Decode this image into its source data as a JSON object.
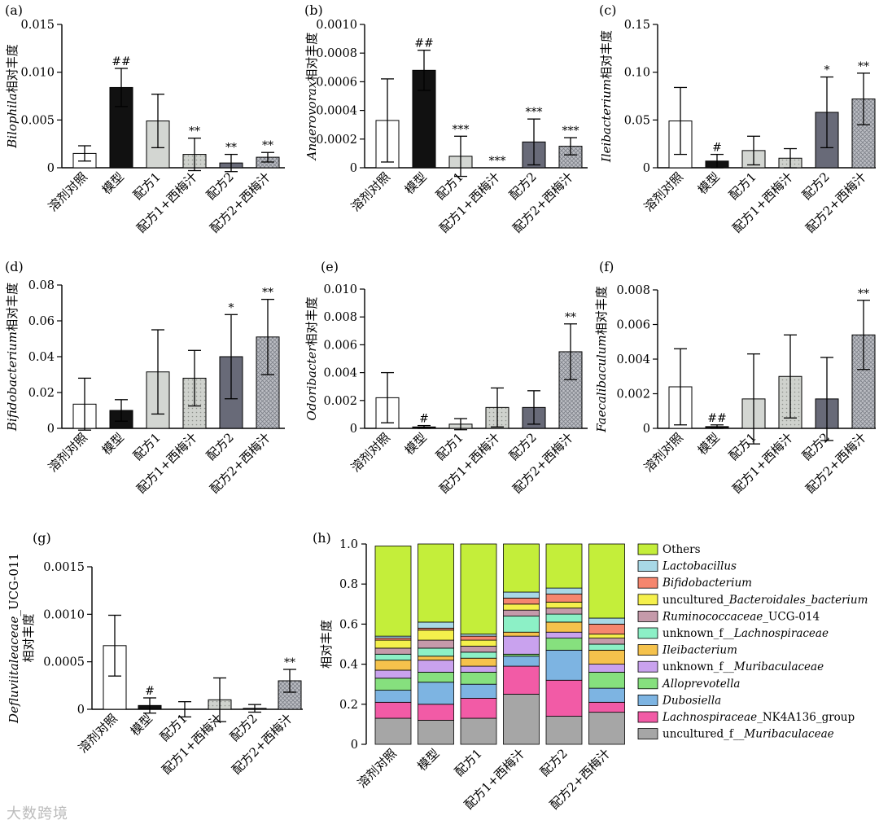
{
  "chart_data": [
    {
      "type": "bar",
      "panel": "(a)",
      "title": "",
      "ylabel": "Bilophila相对丰度",
      "ylabel_italic": "Bilophila",
      "ylabel_rest": "相对丰度",
      "categories": [
        "溶剂对照",
        "模型",
        "配方1",
        "配方1+西梅汁",
        "配方2",
        "配方2+西梅汁"
      ],
      "values": [
        0.0015,
        0.0084,
        0.0049,
        0.0014,
        0.0005,
        0.0011
      ],
      "errors": [
        0.0008,
        0.002,
        0.0028,
        0.0017,
        0.0009,
        0.0005
      ],
      "marks": [
        "",
        "##",
        "",
        "**",
        "**",
        "**"
      ],
      "ylim": [
        0,
        0.015
      ],
      "yticks": [
        0,
        0.005,
        0.01,
        0.015
      ],
      "ytick_labels": [
        "0",
        "0.005",
        "0.010",
        "0.015"
      ]
    },
    {
      "type": "bar",
      "panel": "(b)",
      "title": "",
      "ylabel": "Anaerovorax相对丰度",
      "ylabel_italic": "Anaerovorax",
      "ylabel_rest": "相对丰度",
      "categories": [
        "溶剂对照",
        "模型",
        "配方1",
        "配方1+西梅汁",
        "配方2",
        "配方2+西梅汁"
      ],
      "values": [
        0.00033,
        0.00068,
        8e-05,
        0.0,
        0.00018,
        0.00015
      ],
      "errors": [
        0.00029,
        0.00014,
        0.00014,
        0.0,
        0.00016,
        6e-05
      ],
      "marks": [
        "",
        "##",
        "***",
        "***",
        "***",
        "***"
      ],
      "ylim": [
        0,
        0.001
      ],
      "yticks": [
        0,
        0.0002,
        0.0004,
        0.0006,
        0.0008,
        0.001
      ],
      "ytick_labels": [
        "0",
        "0.0002",
        "0.0004",
        "0.0006",
        "0.0008",
        "0.0010"
      ]
    },
    {
      "type": "bar",
      "panel": "(c)",
      "title": "",
      "ylabel": "Ileibacterium相对丰度",
      "ylabel_italic": "Ileibacterium",
      "ylabel_rest": "相对丰度",
      "categories": [
        "溶剂对照",
        "模型",
        "配方1",
        "配方1+西梅汁",
        "配方2",
        "配方2+西梅汁"
      ],
      "values": [
        0.049,
        0.007,
        0.018,
        0.01,
        0.058,
        0.072
      ],
      "errors": [
        0.035,
        0.007,
        0.015,
        0.01,
        0.037,
        0.027
      ],
      "marks": [
        "",
        "#",
        "",
        "",
        "*",
        "**"
      ],
      "ylim": [
        0,
        0.15
      ],
      "yticks": [
        0,
        0.05,
        0.1,
        0.15
      ],
      "ytick_labels": [
        "0",
        "0.05",
        "0.10",
        "0.15"
      ]
    },
    {
      "type": "bar",
      "panel": "(d)",
      "title": "",
      "ylabel": "Bifidobacterium相对丰度",
      "ylabel_italic": "Bifidobacterium",
      "ylabel_rest": "相对丰度",
      "categories": [
        "溶剂对照",
        "模型",
        "配方1",
        "配方1+西梅汁",
        "配方2",
        "配方2+西梅汁"
      ],
      "values": [
        0.0135,
        0.01,
        0.0315,
        0.028,
        0.04,
        0.051
      ],
      "errors": [
        0.0145,
        0.006,
        0.0235,
        0.0155,
        0.0235,
        0.021
      ],
      "marks": [
        "",
        "",
        "",
        "",
        "*",
        "**"
      ],
      "ylim": [
        0,
        0.08
      ],
      "yticks": [
        0,
        0.02,
        0.04,
        0.06,
        0.08
      ],
      "ytick_labels": [
        "0",
        "0.02",
        "0.04",
        "0.06",
        "0.08"
      ]
    },
    {
      "type": "bar",
      "panel": "(e)",
      "title": "",
      "ylabel": "Odoribacter相对丰度",
      "ylabel_italic": "Odoribacter",
      "ylabel_rest": "相对丰度",
      "categories": [
        "溶剂对照",
        "模型",
        "配方1",
        "配方1+西梅汁",
        "配方2",
        "配方2+西梅汁"
      ],
      "values": [
        0.0022,
        0.0001,
        0.0003,
        0.0015,
        0.0015,
        0.0055
      ],
      "errors": [
        0.0018,
        0.0001,
        0.0004,
        0.0014,
        0.0012,
        0.002
      ],
      "marks": [
        "",
        "#",
        "",
        "",
        "",
        "**"
      ],
      "ylim": [
        0,
        0.01
      ],
      "yticks": [
        0,
        0.002,
        0.004,
        0.006,
        0.008,
        0.01
      ],
      "ytick_labels": [
        "0",
        "0.002",
        "0.004",
        "0.006",
        "0.008",
        "0.010"
      ]
    },
    {
      "type": "bar",
      "panel": "(f)",
      "title": "",
      "ylabel": "Faecalibaculum相对丰度",
      "ylabel_italic": "Faecalibaculum",
      "ylabel_rest": "相对丰度",
      "categories": [
        "溶剂对照",
        "模型",
        "配方1",
        "配方1+西梅汁",
        "配方2",
        "配方2+西梅汁"
      ],
      "values": [
        0.0024,
        0.0001,
        0.0017,
        0.003,
        0.0017,
        0.0054
      ],
      "errors": [
        0.0022,
        0.0001,
        0.0026,
        0.0024,
        0.0024,
        0.002
      ],
      "marks": [
        "",
        "##",
        "",
        "",
        "",
        "**"
      ],
      "ylim": [
        0,
        0.008
      ],
      "yticks": [
        0,
        0.002,
        0.004,
        0.006,
        0.008
      ],
      "ytick_labels": [
        "0",
        "0.002",
        "0.004",
        "0.006",
        "0.008"
      ]
    },
    {
      "type": "bar",
      "panel": "(g)",
      "title": "",
      "ylabel": "Defluviitaleaceae_UCG-011 相对丰度",
      "ylabel_italic": "Defluviitaleaceae",
      "ylabel_suffix": "_UCG-011",
      "ylabel_rest": "相对丰度",
      "categories": [
        "溶剂对照",
        "模型",
        "配方1",
        "配方1+西梅汁",
        "配方2",
        "配方2+西梅汁"
      ],
      "values": [
        0.00067,
        4e-05,
        0.0,
        0.0001,
        1e-05,
        0.0003
      ],
      "errors": [
        0.00032,
        8e-05,
        8e-05,
        0.00023,
        4e-05,
        0.00012
      ],
      "marks": [
        "",
        "#",
        "",
        "",
        "",
        "**"
      ],
      "ylim": [
        0,
        0.0015
      ],
      "yticks": [
        0,
        0.0005,
        0.001,
        0.0015
      ],
      "ytick_labels": [
        "0",
        "0.0005",
        "0.0010",
        "0.0015"
      ]
    },
    {
      "type": "stacked_bar",
      "panel": "(h)",
      "title": "",
      "ylabel": "相对丰度",
      "categories": [
        "溶剂对照",
        "模型",
        "配方1",
        "配方1+西梅汁",
        "配方2",
        "配方2+西梅汁"
      ],
      "ylim": [
        0,
        1.0
      ],
      "yticks": [
        0,
        0.2,
        0.4,
        0.6,
        0.8,
        1.0
      ],
      "ytick_labels": [
        "0",
        "0.2",
        "0.4",
        "0.6",
        "0.8",
        "1.0"
      ],
      "series": [
        {
          "name": "uncultured_f__Muribaculaceae",
          "label_parts": [
            [
              "uncultured_f__",
              false
            ],
            [
              "Muribaculaceae",
              true
            ]
          ],
          "color": "#a6a6a6",
          "values": [
            0.13,
            0.12,
            0.13,
            0.25,
            0.14,
            0.16
          ]
        },
        {
          "name": "Lachnospiraceae_NK4A136_group",
          "label_parts": [
            [
              "Lachnospiraceae",
              true
            ],
            [
              "_NK4A136_group",
              false
            ]
          ],
          "color": "#f25ba6",
          "values": [
            0.08,
            0.08,
            0.1,
            0.14,
            0.18,
            0.05
          ]
        },
        {
          "name": "Dubosiella",
          "label_parts": [
            [
              "Dubosiella",
              true
            ]
          ],
          "color": "#7db4e2",
          "values": [
            0.06,
            0.11,
            0.07,
            0.05,
            0.15,
            0.07
          ]
        },
        {
          "name": "Alloprevotella",
          "label_parts": [
            [
              "Alloprevotella",
              true
            ]
          ],
          "color": "#86e07e",
          "values": [
            0.06,
            0.05,
            0.06,
            0.01,
            0.06,
            0.08
          ]
        },
        {
          "name": "unknown_f__Muribaculaceae",
          "label_parts": [
            [
              "unknown_f__",
              false
            ],
            [
              "Muribaculaceae",
              true
            ]
          ],
          "color": "#c9a2ee",
          "values": [
            0.04,
            0.06,
            0.03,
            0.09,
            0.03,
            0.04
          ]
        },
        {
          "name": "Ileibacterium",
          "label_parts": [
            [
              "Ileibacterium",
              true
            ]
          ],
          "color": "#f5c24c",
          "values": [
            0.05,
            0.02,
            0.04,
            0.02,
            0.05,
            0.07
          ]
        },
        {
          "name": "unknown_f__Lachnospiraceae",
          "label_parts": [
            [
              "unknown_f__",
              false
            ],
            [
              "Lachnospiraceae",
              true
            ]
          ],
          "color": "#8cf0c6",
          "values": [
            0.03,
            0.04,
            0.03,
            0.08,
            0.04,
            0.03
          ]
        },
        {
          "name": "Ruminococcaceae_UCG-014",
          "label_parts": [
            [
              "Ruminococcaceae",
              true
            ],
            [
              "_UCG-014",
              false
            ]
          ],
          "color": "#c59aaa",
          "values": [
            0.03,
            0.04,
            0.03,
            0.03,
            0.03,
            0.03
          ]
        },
        {
          "name": "uncultured_Bacteroidales_bacterium",
          "label_parts": [
            [
              "uncultured_",
              false
            ],
            [
              "Bacteroidales_bacterium",
              true
            ]
          ],
          "color": "#f5f04c",
          "values": [
            0.04,
            0.05,
            0.03,
            0.03,
            0.03,
            0.02
          ]
        },
        {
          "name": "Bifidobacterium",
          "label_parts": [
            [
              "Bifidobacterium",
              true
            ]
          ],
          "color": "#f5866e",
          "values": [
            0.01,
            0.01,
            0.02,
            0.03,
            0.04,
            0.05
          ]
        },
        {
          "name": "Lactobacillus",
          "label_parts": [
            [
              "Lactobacillus",
              true
            ]
          ],
          "color": "#a8d8e6",
          "values": [
            0.01,
            0.03,
            0.01,
            0.03,
            0.03,
            0.03
          ]
        },
        {
          "name": "Others",
          "label_parts": [
            [
              "Others",
              false
            ]
          ],
          "color": "#c4ee3a",
          "values": [
            0.45,
            0.39,
            0.45,
            0.24,
            0.22,
            0.37
          ]
        }
      ]
    }
  ],
  "bar_fills": [
    "#ffffff",
    "#111111",
    "#d3d6d2",
    "#cfd2cd",
    "#686a78",
    "#bcbec4"
  ],
  "watermark": "大数跨境"
}
